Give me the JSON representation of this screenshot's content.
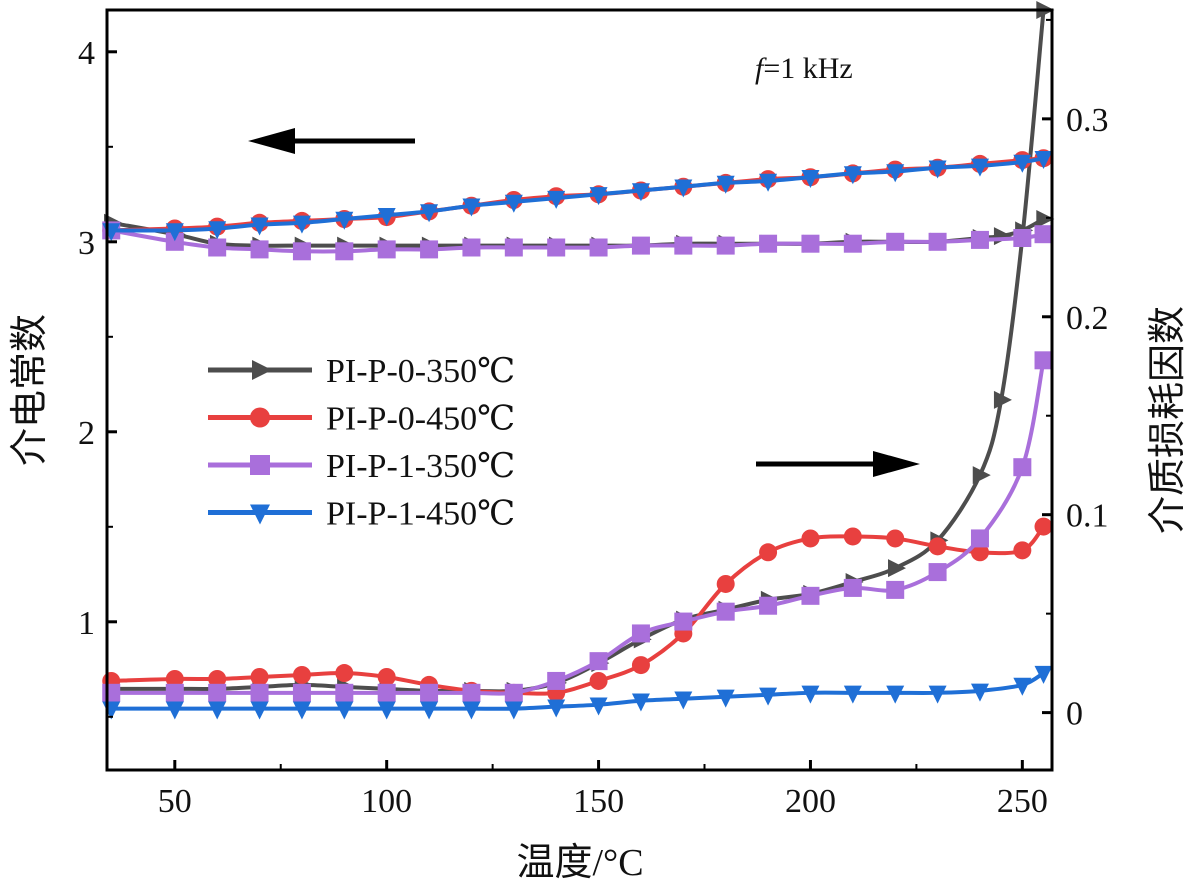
{
  "chart_data": {
    "type": "line",
    "annotation": {
      "italic": "f",
      "text": "=1 kHz"
    },
    "xlabel": "温度/°C",
    "ylabel_left": "介电常数",
    "ylabel_right": "介质损耗因数",
    "xlim": [
      34,
      257
    ],
    "ylim_left": [
      0.22,
      4.22
    ],
    "ylim_right": [
      -0.029,
      0.355
    ],
    "xticks": [
      50,
      100,
      150,
      200,
      250
    ],
    "yticks_left": [
      1,
      2,
      3,
      4
    ],
    "yticks_right": [
      0,
      0.1,
      0.2,
      0.3
    ],
    "legend_placement": "center-left",
    "grid": false,
    "series": [
      {
        "name": "PI-P-0-350℃",
        "color": "#4d4d4d",
        "marker": "triangle-right",
        "x": [
          35,
          50,
          60,
          70,
          80,
          90,
          100,
          110,
          120,
          130,
          140,
          150,
          160,
          170,
          180,
          190,
          200,
          210,
          220,
          230,
          240,
          245,
          250,
          255
        ],
        "dielectric_constant": [
          3.1,
          3.04,
          2.99,
          2.98,
          2.98,
          2.98,
          2.98,
          2.98,
          2.98,
          2.98,
          2.98,
          2.98,
          2.98,
          2.99,
          2.99,
          2.99,
          2.99,
          3.0,
          3.0,
          3.0,
          3.02,
          3.03,
          3.06,
          3.12
        ],
        "loss_factor": [
          0.012,
          0.012,
          0.012,
          0.013,
          0.014,
          0.013,
          0.012,
          0.011,
          0.011,
          0.011,
          0.015,
          0.025,
          0.037,
          0.047,
          0.052,
          0.057,
          0.06,
          0.066,
          0.073,
          0.087,
          0.12,
          0.158,
          0.24,
          0.355
        ]
      },
      {
        "name": "PI-P-0-450℃",
        "color": "#e8403f",
        "marker": "circle",
        "x": [
          35,
          50,
          60,
          70,
          80,
          90,
          100,
          110,
          120,
          130,
          140,
          150,
          160,
          170,
          180,
          190,
          200,
          210,
          220,
          230,
          240,
          250,
          255
        ],
        "dielectric_constant": [
          3.06,
          3.07,
          3.08,
          3.1,
          3.11,
          3.12,
          3.13,
          3.16,
          3.19,
          3.22,
          3.24,
          3.25,
          3.27,
          3.29,
          3.31,
          3.33,
          3.34,
          3.36,
          3.38,
          3.39,
          3.41,
          3.43,
          3.44
        ],
        "loss_factor": [
          0.016,
          0.017,
          0.017,
          0.018,
          0.019,
          0.02,
          0.018,
          0.014,
          0.011,
          0.01,
          0.01,
          0.016,
          0.024,
          0.04,
          0.065,
          0.081,
          0.088,
          0.089,
          0.088,
          0.084,
          0.081,
          0.082,
          0.094
        ]
      },
      {
        "name": "PI-P-1-350℃",
        "color": "#a96fdb",
        "marker": "square",
        "x": [
          35,
          50,
          60,
          70,
          80,
          90,
          100,
          110,
          120,
          130,
          140,
          150,
          160,
          170,
          180,
          190,
          200,
          210,
          220,
          230,
          240,
          250,
          255
        ],
        "dielectric_constant": [
          3.06,
          3.0,
          2.97,
          2.96,
          2.95,
          2.95,
          2.96,
          2.96,
          2.97,
          2.97,
          2.97,
          2.97,
          2.98,
          2.98,
          2.98,
          2.99,
          2.99,
          2.99,
          3.0,
          3.0,
          3.01,
          3.02,
          3.04
        ],
        "loss_factor": [
          0.01,
          0.01,
          0.01,
          0.01,
          0.01,
          0.01,
          0.01,
          0.01,
          0.01,
          0.01,
          0.016,
          0.026,
          0.04,
          0.046,
          0.051,
          0.054,
          0.059,
          0.063,
          0.062,
          0.071,
          0.088,
          0.124,
          0.178
        ]
      },
      {
        "name": "PI-P-1-450℃",
        "color": "#1f6fd6",
        "marker": "triangle-down",
        "x": [
          35,
          50,
          60,
          70,
          80,
          90,
          100,
          110,
          120,
          130,
          140,
          150,
          160,
          170,
          180,
          190,
          200,
          210,
          220,
          230,
          240,
          250,
          255
        ],
        "dielectric_constant": [
          3.06,
          3.06,
          3.07,
          3.09,
          3.1,
          3.12,
          3.14,
          3.16,
          3.19,
          3.21,
          3.23,
          3.25,
          3.27,
          3.29,
          3.31,
          3.32,
          3.34,
          3.36,
          3.37,
          3.39,
          3.4,
          3.42,
          3.44
        ],
        "loss_factor": [
          0.002,
          0.002,
          0.002,
          0.002,
          0.002,
          0.002,
          0.002,
          0.002,
          0.002,
          0.002,
          0.003,
          0.004,
          0.006,
          0.007,
          0.008,
          0.009,
          0.01,
          0.01,
          0.01,
          0.01,
          0.011,
          0.014,
          0.02
        ]
      }
    ]
  }
}
